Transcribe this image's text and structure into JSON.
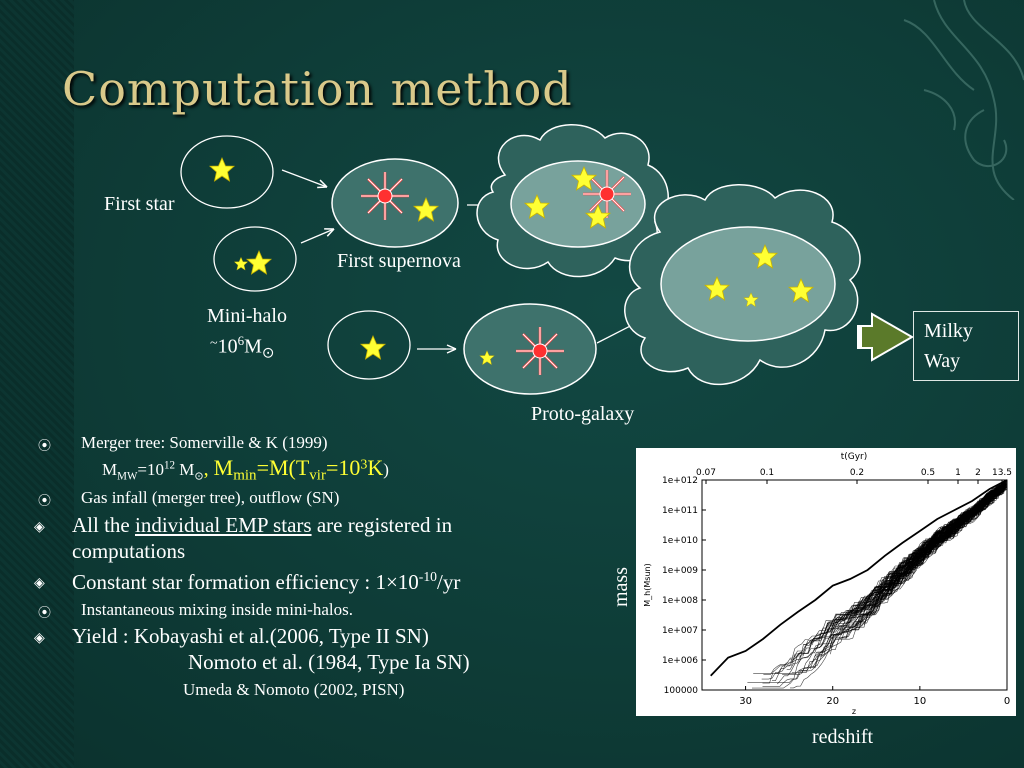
{
  "slide": {
    "title": "Computation method"
  },
  "diagram": {
    "first_star": "First star",
    "first_supernova": "First supernova",
    "mini_halo": "Mini-halo",
    "mini_halo_mass_prefix": "~",
    "mini_halo_mass_base": "10",
    "mini_halo_mass_exp": "6",
    "mini_halo_mass_unit": "M",
    "sun_symbol": "⊙",
    "proto_galaxy": "Proto-galaxy",
    "milky_way_line1": "Milky",
    "milky_way_line2": "Way"
  },
  "bullets": {
    "b1_text": "Merger tree:  Somerville & K (1999)",
    "b1_sub_m": "M",
    "b1_sub_mw": "MW",
    "b1_sub_eq": "=10",
    "b1_sub_exp": "12",
    "b1_sub_msun": " M",
    "b1_sub_sun": "⊙",
    "b1_comma": ", ",
    "b1_mmin": "M",
    "b1_mmin_sub": "min",
    "b1_mmin_eq": "=M(T",
    "b1_vir_sub": "vir",
    "b1_eq103": "=10",
    "b1_exp3": "3",
    "b1_k": "K",
    "b1_close": ")",
    "b2_text": "Gas infall (merger tree),   outflow (SN)",
    "b3_pre": "All the ",
    "b3_underlined": "individual EMP stars",
    "b3_post": " are registered in",
    "b3_line2": "computations",
    "b4_pre": "Constant star formation efficiency : 1",
    "b4_times": "×",
    "b4_ten": "10",
    "b4_exp": "-10",
    "b4_post": "/yr",
    "b5_text": "Instantaneous mixing inside mini-halos.",
    "b6_line1": "Yield :  Kobayashi et al.(2006, Type II SN)",
    "b6_line2": "Nomoto et al. (1984, Type Ia SN)",
    "b6_line3": "Umeda & Nomoto (2002, PISN)",
    "sym_circle": "⦿",
    "sym_diamond": "◈"
  },
  "plot": {
    "outer_ylabel": "mass",
    "outer_xlabel": "redshift",
    "top_axis_title": "t(Gyr)",
    "inner_ylabel": "M_h(Msun)",
    "inner_xlabel": "z",
    "y_ticks": [
      "1e+012",
      "1e+011",
      "1e+010",
      "1e+009",
      "1e+008",
      "1e+007",
      "1e+006",
      "100000"
    ],
    "x_ticks": [
      "30",
      "20",
      "10",
      "0"
    ],
    "top_ticks": [
      "0.07",
      "0.1",
      "0.2",
      "0.5",
      "1",
      "2",
      "13.5"
    ]
  },
  "chart_data": {
    "type": "line",
    "title": "",
    "xlabel": "z",
    "ylabel": "M_h(Msun)",
    "x_range": [
      35,
      0
    ],
    "y_scale": "log",
    "y_range": [
      100000,
      1000000000000
    ],
    "top_axis": {
      "label": "t(Gyr)",
      "ticks": [
        "0.07",
        "0.1",
        "0.2",
        "0.5",
        "1",
        "2",
        "13.5"
      ]
    },
    "series": [
      {
        "x": [
          34,
          32,
          30,
          28,
          26,
          24,
          22,
          20,
          18,
          16,
          14,
          12,
          10,
          8,
          6,
          4,
          2,
          0
        ],
        "y": [
          300000,
          1200000,
          2000000,
          5000000,
          15000000,
          40000000,
          100000000,
          300000000,
          500000000,
          1000000000,
          3000000000,
          8000000000,
          20000000000,
          50000000000,
          100000000000,
          200000000000,
          500000000000,
          1000000000000
        ]
      }
    ],
    "grid": false,
    "colors": {
      "lines": "#000000",
      "background": "#ffffff"
    }
  }
}
